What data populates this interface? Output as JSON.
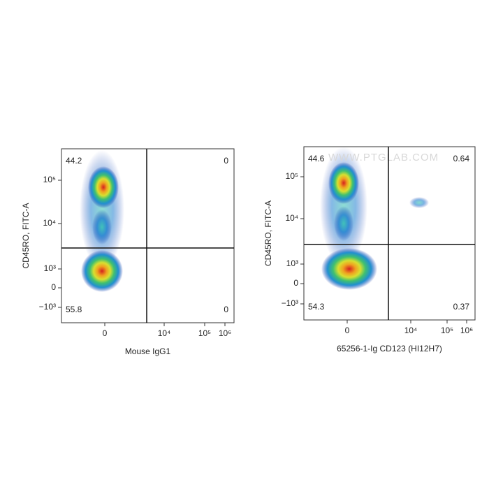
{
  "watermark": "WWW.PTGLAB.COM",
  "panels": [
    {
      "x_label": "Mouse IgG1",
      "y_label": "CD45RO, FITC-A",
      "x_ticks": [
        "0",
        "10⁴",
        "10⁵",
        "10⁶"
      ],
      "y_ticks": [
        "10⁵",
        "10⁴",
        "10³",
        "0",
        "−10³"
      ],
      "quadrants": {
        "upper_left": "44.2",
        "upper_right": "0",
        "lower_left": "55.8",
        "lower_right": "0"
      }
    },
    {
      "x_label": "65256-1-Ig CD123 (HI12H7)",
      "y_label": "CD45RO, FITC-A",
      "x_ticks": [
        "0",
        "10⁴",
        "10⁵",
        "10⁶"
      ],
      "y_ticks": [
        "10⁵",
        "10⁴",
        "10³",
        "0",
        "−10³"
      ],
      "quadrants": {
        "upper_left": "44.6",
        "upper_right": "0.64",
        "lower_left": "54.3",
        "lower_right": "0.37"
      }
    }
  ]
}
